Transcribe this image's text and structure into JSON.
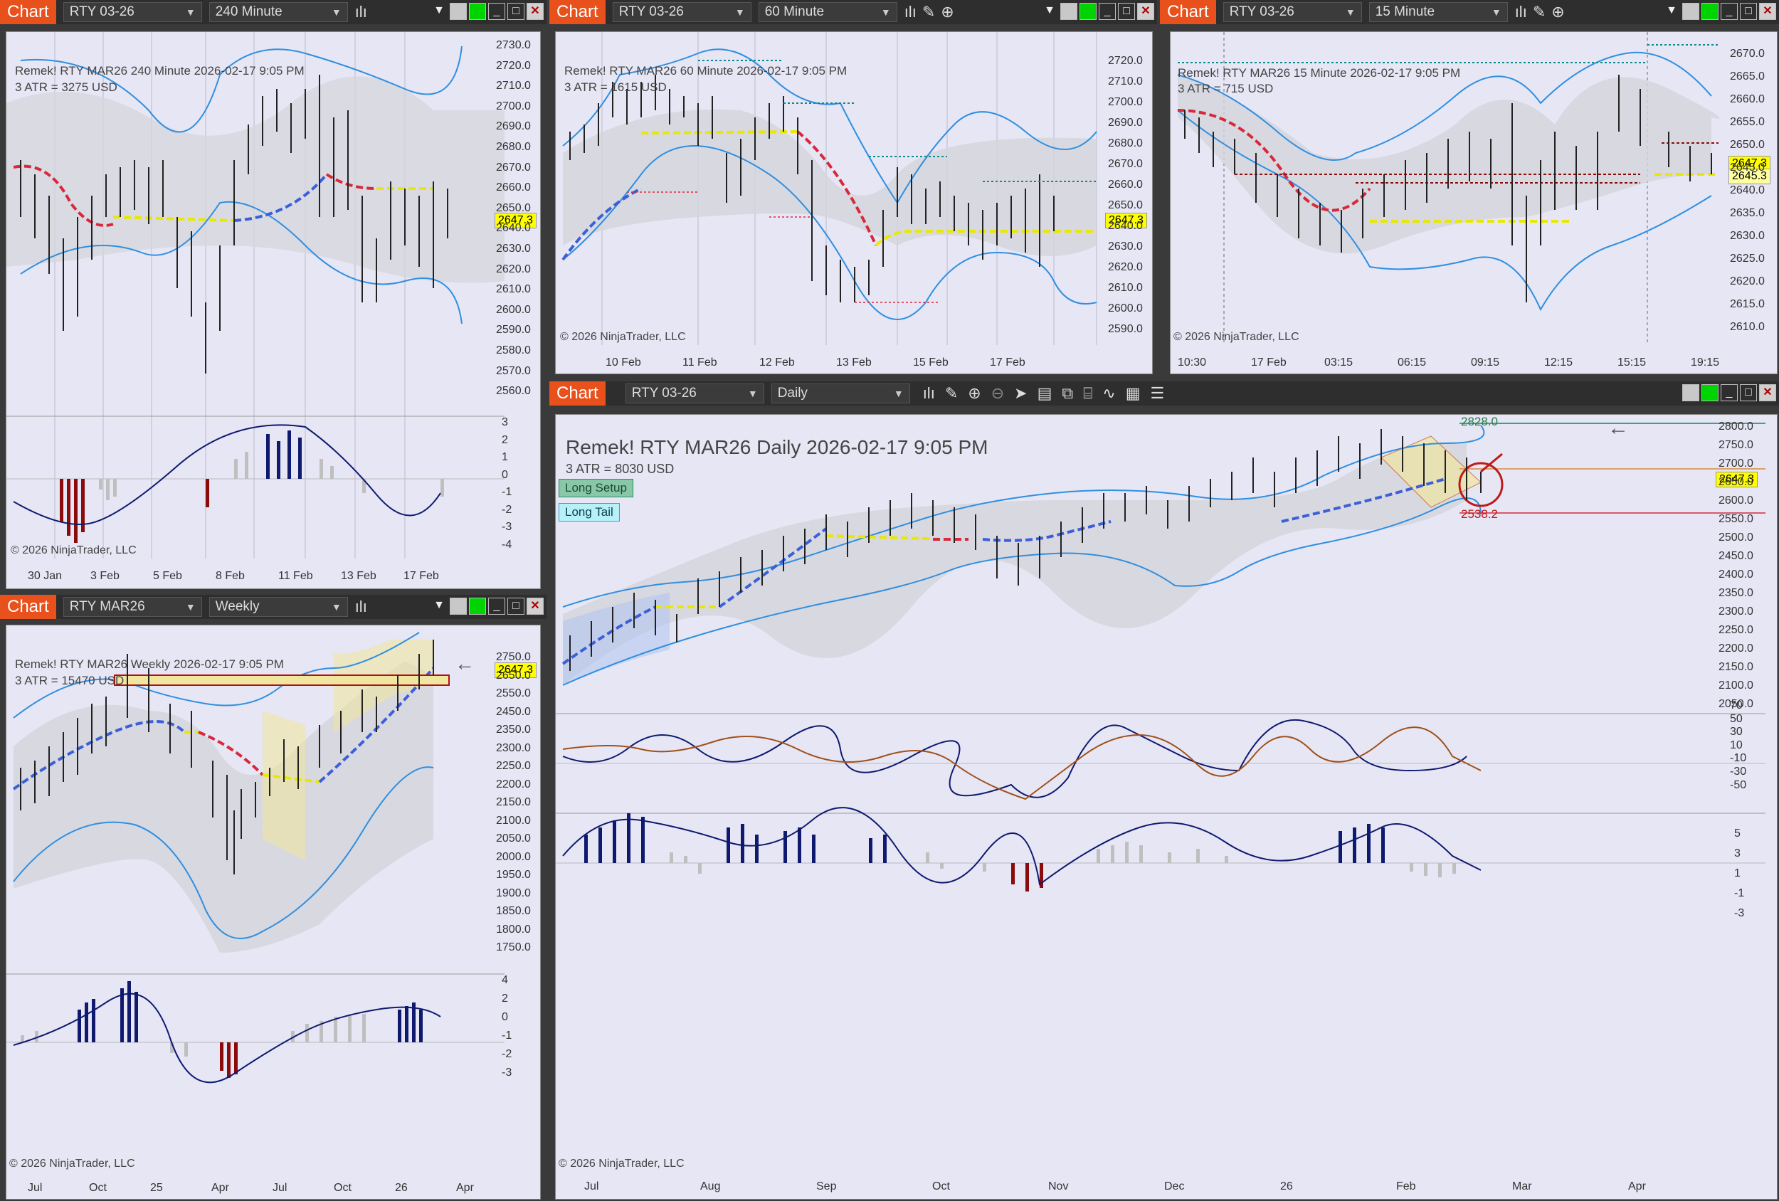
{
  "common": {
    "chart_label": "Chart",
    "copyright": "© 2026 NinjaTrader, LLC",
    "last_price": "2647.3"
  },
  "chart240": {
    "instrument": "RTY 03-26",
    "interval": "240 Minute",
    "title": "Remek!  RTY MAR26  240 Minute  2026-02-17 9:05 PM",
    "atr": "3 ATR = 3275 USD",
    "y_ticks": [
      "2730.0",
      "2720.0",
      "2710.0",
      "2700.0",
      "2690.0",
      "2680.0",
      "2670.0",
      "2660.0",
      "2650.0",
      "2640.0",
      "2630.0",
      "2620.0",
      "2610.0",
      "2600.0",
      "2590.0",
      "2580.0",
      "2570.0",
      "2560.0"
    ],
    "osc_ticks": [
      "3",
      "2",
      "1",
      "0",
      "-1",
      "-2",
      "-3",
      "-4"
    ],
    "x_ticks": [
      "30 Jan",
      "3 Feb",
      "5 Feb",
      "8 Feb",
      "11 Feb",
      "13 Feb",
      "17 Feb"
    ]
  },
  "chart60": {
    "instrument": "RTY 03-26",
    "interval": "60 Minute",
    "title": "Remek!  RTY MAR26  60 Minute  2026-02-17 9:05 PM",
    "atr": "3 ATR = 1615 USD",
    "y_ticks": [
      "2720.0",
      "2710.0",
      "2700.0",
      "2690.0",
      "2680.0",
      "2670.0",
      "2660.0",
      "2650.0",
      "2640.0",
      "2630.0",
      "2620.0",
      "2610.0",
      "2600.0",
      "2590.0"
    ],
    "x_ticks": [
      "10 Feb",
      "11 Feb",
      "12 Feb",
      "13 Feb",
      "15 Feb",
      "17 Feb"
    ]
  },
  "chart15": {
    "instrument": "RTY 03-26",
    "interval": "15 Minute",
    "title": "Remek!  RTY MAR26  15 Minute  2026-02-17 9:05 PM",
    "atr": "3 ATR = 715 USD",
    "y_ticks": [
      "2670.0",
      "2665.0",
      "2660.0",
      "2655.0",
      "2650.0",
      "2645.0",
      "2640.0",
      "2635.0",
      "2630.0",
      "2625.0",
      "2620.0",
      "2615.0",
      "2610.0"
    ],
    "x_ticks": [
      "10:30",
      "17 Feb",
      "03:15",
      "06:15",
      "09:15",
      "12:15",
      "15:15",
      "19:15"
    ],
    "tag2": "2645.3"
  },
  "chartWeekly": {
    "instrument": "RTY MAR26",
    "interval": "Weekly",
    "title": "Remek!  RTY MAR26  Weekly  2026-02-17 9:05 PM",
    "atr": "3 ATR = 15470 USD",
    "y_ticks": [
      "2750.0",
      "2650.0",
      "2550.0",
      "2450.0",
      "2350.0",
      "2300.0",
      "2250.0",
      "2200.0",
      "2150.0",
      "2100.0",
      "2050.0",
      "2000.0",
      "1950.0",
      "1900.0",
      "1850.0",
      "1800.0",
      "1750.0"
    ],
    "osc_ticks": [
      "4",
      "2",
      "0",
      "-1",
      "-2",
      "-3"
    ],
    "x_ticks": [
      "Jul",
      "Oct",
      "25",
      "Apr",
      "Jul",
      "Oct",
      "26",
      "Apr"
    ]
  },
  "chartDaily": {
    "instrument": "RTY 03-26",
    "interval": "Daily",
    "title": "Remek!  RTY MAR26  Daily  2026-02-17 9:05 PM",
    "atr": "3 ATR = 8030 USD",
    "long_setup": "Long Setup",
    "long_tail": "Long Tail",
    "target": "2828.0",
    "stop": "2538.2",
    "y_ticks": [
      "2800.0",
      "2750.0",
      "2700.0",
      "2650.0",
      "2600.0",
      "2550.0",
      "2500.0",
      "2450.0",
      "2400.0",
      "2350.0",
      "2300.0",
      "2250.0",
      "2200.0",
      "2150.0",
      "2100.0",
      "2050.0"
    ],
    "osc1_ticks": [
      "70",
      "50",
      "30",
      "10",
      "-10",
      "-30",
      "-50"
    ],
    "osc2_ticks": [
      "5",
      "3",
      "1",
      "-1",
      "-3"
    ],
    "x_ticks": [
      "Jul",
      "Aug",
      "Sep",
      "Oct",
      "Nov",
      "Dec",
      "26",
      "Feb",
      "Mar",
      "Apr"
    ]
  }
}
